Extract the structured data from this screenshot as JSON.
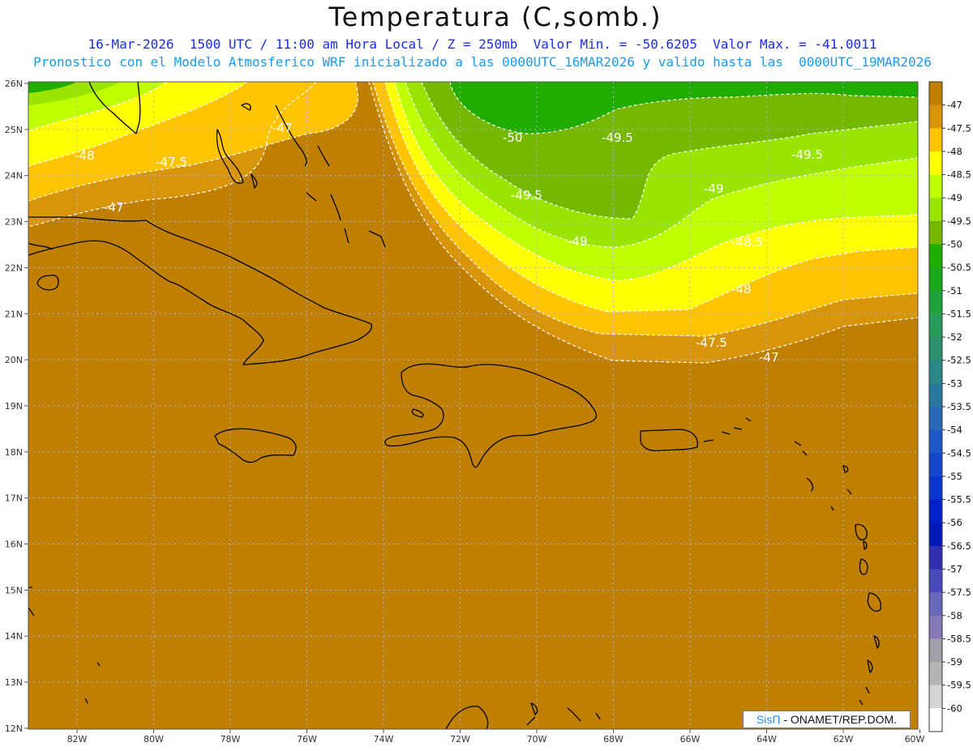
{
  "header": {
    "title": "Temperatura (C,somb.)",
    "line1": "16-Mar-2026  1500 UTC / 11:00 am Hora Local / Z = 250mb  Valor Min. = -50.6205  Valor Max. = -41.0011",
    "line2": "Pronostico con el Modelo Atmosferico WRF inicializado a las 0000UTC_16MAR2026 y valido hasta las  0000UTC_19MAR2026"
  },
  "axes": {
    "lat_labels": [
      "26N",
      "25N",
      "24N",
      "23N",
      "22N",
      "21N",
      "20N",
      "19N",
      "18N",
      "17N",
      "16N",
      "15N",
      "14N",
      "13N",
      "12N"
    ],
    "lon_labels": [
      "82W",
      "80W",
      "78W",
      "76W",
      "74W",
      "72W",
      "70W",
      "68W",
      "66W",
      "64W",
      "62W",
      "60W"
    ]
  },
  "contour_labels": [
    "-47",
    "-47.5",
    "-48",
    "-47",
    "-50",
    "-49.5",
    "-49.5",
    "-49.5",
    "-49",
    "-49",
    "-48.5",
    "-48",
    "-47.5",
    "-47"
  ],
  "colorbar": {
    "labels": [
      "-47",
      "-47.5",
      "-48",
      "-48.5",
      "-49",
      "-49.5",
      "-50",
      "-50.5",
      "-51",
      "-51.5",
      "-52",
      "-52.5",
      "-53",
      "-53.5",
      "-54",
      "-54.5",
      "-55",
      "-55.5",
      "-56",
      "-56.5",
      "-57",
      "-57.5",
      "-58",
      "-58.5",
      "-59",
      "-59.5",
      "-60"
    ],
    "colors": [
      "#bf7f00",
      "#d8950a",
      "#fec400",
      "#ffff00",
      "#c0ff00",
      "#99e500",
      "#75b800",
      "#1ead00",
      "#18a818",
      "#22a23a",
      "#2a9a58",
      "#2a9070",
      "#2a8888",
      "#2a78a0",
      "#2a68b8",
      "#1e58c8",
      "#1448cc",
      "#0a36cc",
      "#0020c8",
      "#0018b8",
      "#3030b0",
      "#4848b8",
      "#6868b8",
      "#8878b8",
      "#a0a0a8",
      "#b4b4b4",
      "#d4d4d4",
      "#ffffff"
    ]
  },
  "credit": {
    "brand": "SisΠ",
    "text": " - ONAMET/REP.DOM."
  }
}
